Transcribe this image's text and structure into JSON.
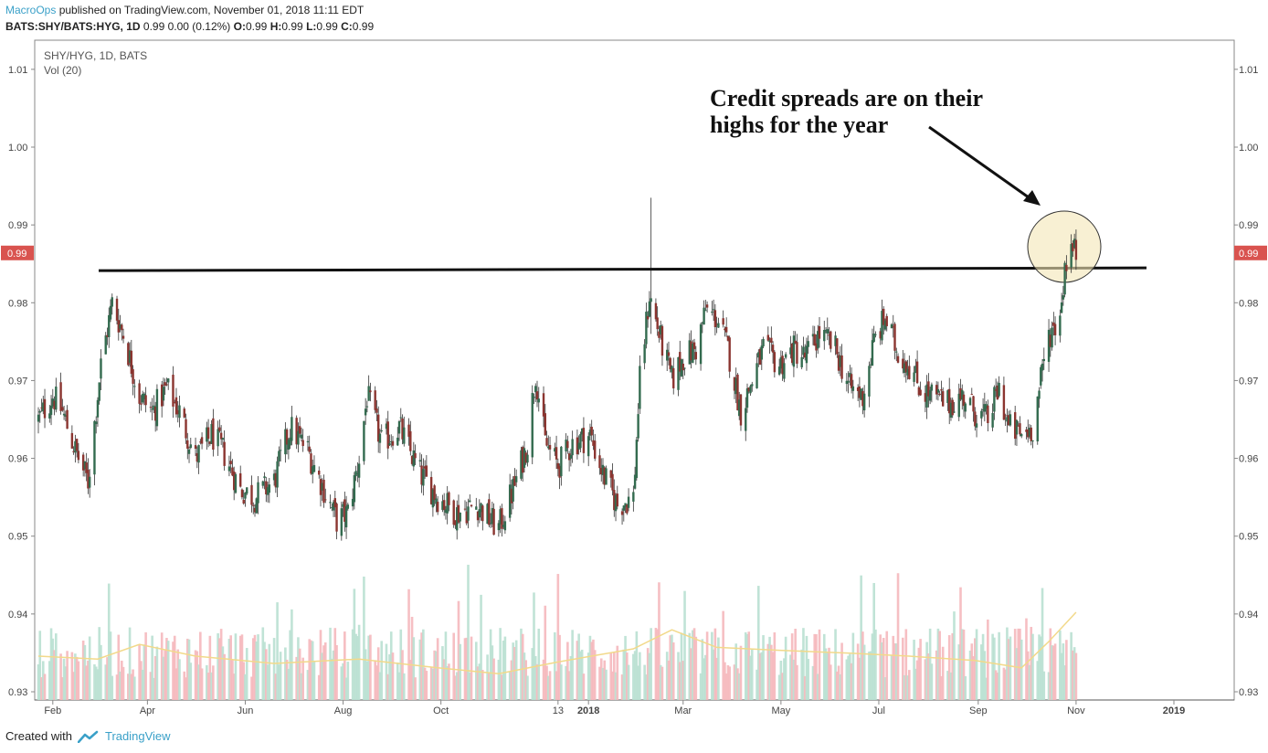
{
  "header": {
    "author": "MacroOps",
    "published_text": "published on TradingView.com, November 01, 2018 11:11 EDT",
    "symbol_line_bold": "BATS:SHY/BATS:HYG, 1D",
    "symbol_line_values": "0.99 0.00 (0.12%)",
    "o_label": "O:",
    "o_value": "0.99",
    "h_label": "H:",
    "h_value": "0.99",
    "l_label": "L:",
    "l_value": "0.99",
    "c_label": "C:",
    "c_value": "0.99"
  },
  "footer": {
    "created_with": "Created with",
    "brand": "TradingView"
  },
  "colors": {
    "up": "#336b4f",
    "down": "#8b3530",
    "vol_up": "#b9e0d2",
    "vol_down": "#f5b8bc",
    "ma": "#f2d98a",
    "price_tag": "#d9534f",
    "highlight": "#f3e6b5"
  },
  "chart_data": {
    "type": "candlestick",
    "title": "SHY/HYG, 1D, BATS",
    "indicator_label": "Vol (20)",
    "ylim": [
      0.93,
      1.013
    ],
    "y_ticks": [
      "1.01",
      "1.00",
      "0.99",
      "0.98",
      "0.97",
      "0.96",
      "0.95",
      "0.94",
      "0.93"
    ],
    "x_ticks": [
      "Feb",
      "Apr",
      "Jun",
      "Aug",
      "Oct",
      "13",
      "2018",
      "Mar",
      "May",
      "Jul",
      "Sep",
      "Nov",
      "2019"
    ],
    "last_price_label": "0.99",
    "last_price": 0.9864,
    "resistance_level": 0.9843,
    "annotation": "Credit spreads are on their highs for the year",
    "annotation_lines": [
      "Credit spreads are on their",
      "highs for the year"
    ],
    "close_path": [
      [
        "2017-01-23",
        0.965
      ],
      [
        "2017-02-01",
        0.968
      ],
      [
        "2017-02-07",
        0.966
      ],
      [
        "2017-02-15",
        0.961
      ],
      [
        "2017-02-23",
        0.957
      ],
      [
        "2017-03-03",
        0.972
      ],
      [
        "2017-03-10",
        0.98
      ],
      [
        "2017-03-17",
        0.976
      ],
      [
        "2017-03-27",
        0.968
      ],
      [
        "2017-04-04",
        0.966
      ],
      [
        "2017-04-13",
        0.969
      ],
      [
        "2017-04-21",
        0.966
      ],
      [
        "2017-05-01",
        0.96
      ],
      [
        "2017-05-11",
        0.963
      ],
      [
        "2017-05-18",
        0.961
      ],
      [
        "2017-05-29",
        0.956
      ],
      [
        "2017-06-07",
        0.955
      ],
      [
        "2017-06-19",
        0.957
      ],
      [
        "2017-06-29",
        0.964
      ],
      [
        "2017-07-10",
        0.961
      ],
      [
        "2017-07-20",
        0.956
      ],
      [
        "2017-07-28",
        0.952
      ],
      [
        "2017-08-04",
        0.953
      ],
      [
        "2017-08-11",
        0.96
      ],
      [
        "2017-08-16",
        0.968
      ],
      [
        "2017-08-25",
        0.962
      ],
      [
        "2017-09-05",
        0.964
      ],
      [
        "2017-09-18",
        0.958
      ],
      [
        "2017-09-29",
        0.955
      ],
      [
        "2017-10-11",
        0.953
      ],
      [
        "2017-10-24",
        0.954
      ],
      [
        "2017-11-01",
        0.952
      ],
      [
        "2017-11-06",
        0.951
      ],
      [
        "2017-11-15",
        0.956
      ],
      [
        "2017-11-24",
        0.962
      ],
      [
        "2017-11-29",
        0.971
      ],
      [
        "2017-12-05",
        0.962
      ],
      [
        "2017-12-13",
        0.959
      ],
      [
        "2017-12-22",
        0.962
      ],
      [
        "2018-01-02",
        0.963
      ],
      [
        "2018-01-10",
        0.958
      ],
      [
        "2018-01-19",
        0.954
      ],
      [
        "2018-01-29",
        0.955
      ],
      [
        "2018-02-02",
        0.97
      ],
      [
        "2018-02-08",
        0.981
      ],
      [
        "2018-02-14",
        0.976
      ],
      [
        "2018-02-22",
        0.97
      ],
      [
        "2018-03-01",
        0.973
      ],
      [
        "2018-03-09",
        0.974
      ],
      [
        "2018-03-15",
        0.979
      ],
      [
        "2018-03-22",
        0.978
      ],
      [
        "2018-03-29",
        0.974
      ],
      [
        "2018-04-06",
        0.966
      ],
      [
        "2018-04-13",
        0.97
      ],
      [
        "2018-04-20",
        0.974
      ],
      [
        "2018-04-30",
        0.972
      ],
      [
        "2018-05-09",
        0.974
      ],
      [
        "2018-05-16",
        0.973
      ],
      [
        "2018-05-25",
        0.976
      ],
      [
        "2018-06-04",
        0.974
      ],
      [
        "2018-06-13",
        0.969
      ],
      [
        "2018-06-21",
        0.968
      ],
      [
        "2018-06-28",
        0.975
      ],
      [
        "2018-07-05",
        0.978
      ],
      [
        "2018-07-12",
        0.974
      ],
      [
        "2018-07-20",
        0.972
      ],
      [
        "2018-07-27",
        0.969
      ],
      [
        "2018-08-03",
        0.968
      ],
      [
        "2018-08-13",
        0.967
      ],
      [
        "2018-08-23",
        0.968
      ],
      [
        "2018-08-30",
        0.966
      ],
      [
        "2018-09-07",
        0.965
      ],
      [
        "2018-09-14",
        0.969
      ],
      [
        "2018-09-20",
        0.964
      ],
      [
        "2018-09-28",
        0.963
      ],
      [
        "2018-10-05",
        0.964
      ],
      [
        "2018-10-10",
        0.97
      ],
      [
        "2018-10-15",
        0.976
      ],
      [
        "2018-10-19",
        0.977
      ],
      [
        "2018-10-23",
        0.98
      ],
      [
        "2018-10-25",
        0.985
      ],
      [
        "2018-10-29",
        0.987
      ],
      [
        "2018-11-01",
        0.9864
      ]
    ],
    "volume_ma_path": [
      [
        "2017-01-23",
        0.3
      ],
      [
        "2017-03-01",
        0.28
      ],
      [
        "2017-03-27",
        0.38
      ],
      [
        "2017-05-01",
        0.3
      ],
      [
        "2017-06-19",
        0.25
      ],
      [
        "2017-08-11",
        0.28
      ],
      [
        "2017-09-29",
        0.22
      ],
      [
        "2017-11-06",
        0.18
      ],
      [
        "2017-12-13",
        0.26
      ],
      [
        "2018-01-29",
        0.35
      ],
      [
        "2018-02-22",
        0.48
      ],
      [
        "2018-03-22",
        0.36
      ],
      [
        "2018-04-30",
        0.34
      ],
      [
        "2018-06-13",
        0.32
      ],
      [
        "2018-07-20",
        0.3
      ],
      [
        "2018-08-30",
        0.27
      ],
      [
        "2018-09-28",
        0.22
      ],
      [
        "2018-10-15",
        0.4
      ],
      [
        "2018-11-01",
        0.6
      ]
    ]
  }
}
